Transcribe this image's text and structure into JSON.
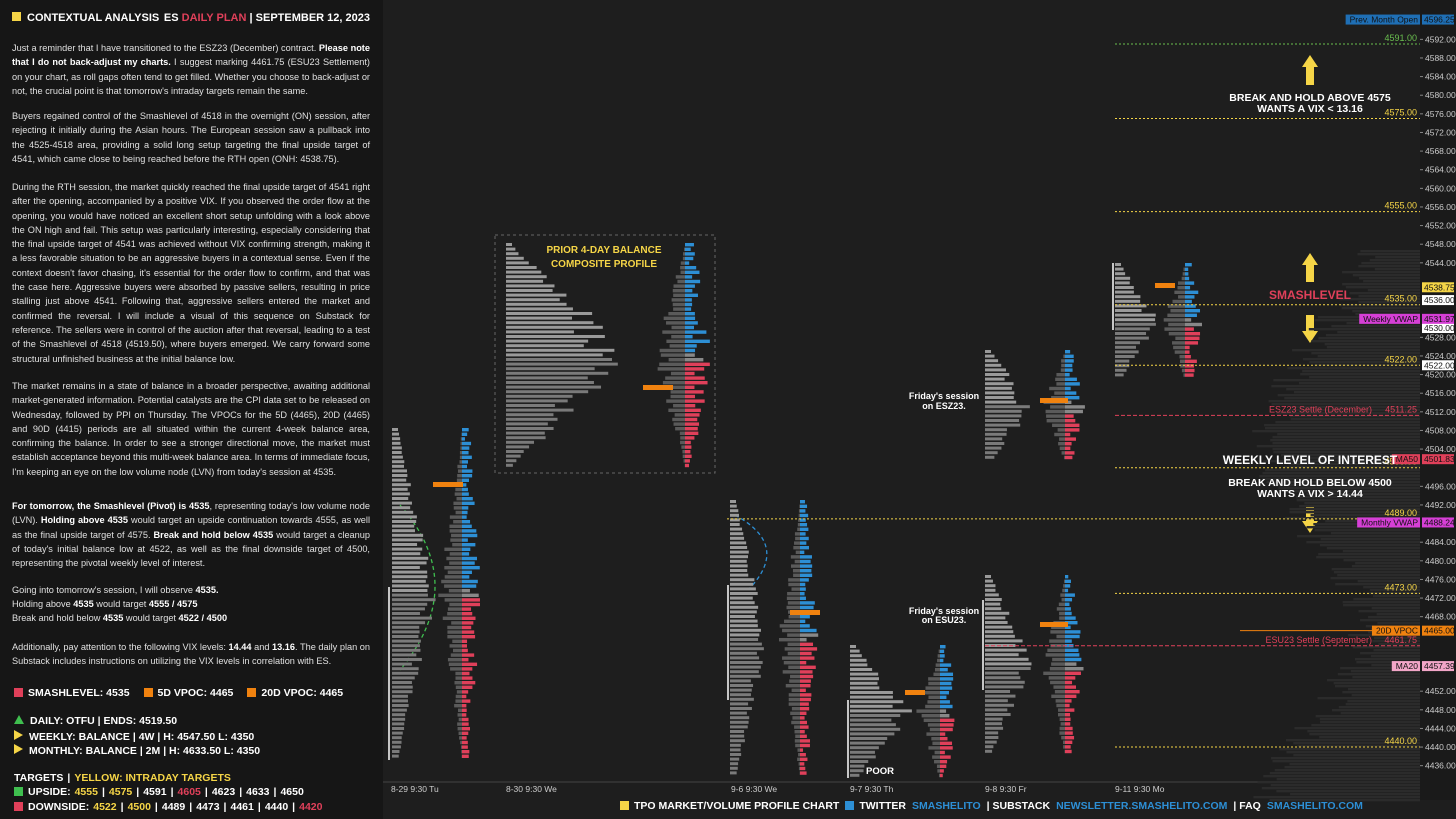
{
  "header": {
    "title": "CONTEXTUAL ANALYSIS",
    "symbol": "ES",
    "plan": "DAILY PLAN",
    "date": "SEPTEMBER 12, 2023"
  },
  "paragraphs": [
    [
      "Just a reminder that I have transitioned to the ESZ23 (December) contract. ",
      {
        "t": "Please note that I do not back-adjust my charts.",
        "b": true
      },
      " I suggest marking 4461.75 (ESU23 Settlement) on your chart, as roll gaps often tend to get filled. Whether you choose to back-adjust or not, the crucial point is that tomorrow's intraday targets remain the same."
    ],
    [
      "Buyers regained control of the Smashlevel of 4518 in the overnight (ON) session, after rejecting it initially during the Asian hours. The European session saw a pullback into the 4525-4518 area, providing a solid long setup targeting the final upside target of 4541, which came close to being reached before the RTH open (ONH: 4538.75)."
    ],
    [
      "During the RTH session, the market quickly reached the final upside target of 4541 right after the opening, accompanied by a positive VIX. If you observed the order flow at the opening, you would have noticed an excellent short setup unfolding with a look above the ON high and fail. This setup was particularly interesting, especially considering that the final upside target of 4541 was achieved without VIX confirming strength, making it a less favorable situation to be an aggressive buyers in a contextual sense. Even if the context doesn't favor chasing, it's essential for the order flow to confirm, and that was the case here. Aggressive buyers were absorbed by passive sellers, resulting in price stalling just above 4541. Following that, aggressive sellers entered the market and confirmed the reversal. I will include a visual of this sequence on Substack for reference. The sellers were in control of the auction after that reversal, leading to a test of the Smashlevel of 4518 (4519.50), where buyers emerged. We carry forward some structural unfinished business at the initial balance low."
    ],
    [
      "The market remains in a state of balance in a broader perspective, awaiting additional market-generated information. Potential catalysts are the CPI data set to be released on Wednesday, followed by PPI on Thursday. The VPOCs for the 5D (4465), 20D (4465) and 90D (4415) periods are all situated within the current 4-week balance area, confirming the balance. In order to see a stronger directional move, the market must establish acceptance beyond this multi-week balance area. In terms of immediate focus, I'm keeping an eye on the low volume node (LVN) from today's session at 4535."
    ],
    [
      {
        "t": "For tomorrow, the Smashlevel (Pivot) is 4535",
        "b": true
      },
      ", representing today's low volume node (LVN). ",
      {
        "t": "Holding above 4535",
        "b": true
      },
      " would target an upside continuation towards 4555, as well as the final upside target of 4575. ",
      {
        "t": "Break and hold below 4535",
        "b": true
      },
      " would target a cleanup of today's initial balance low at 4522, as well as the final downside target of 4500, representing the pivotal weekly level of interest."
    ],
    [
      "Going into tomorrow's session, I will observe ",
      {
        "t": "4535.",
        "b": true
      }
    ],
    [
      "Holding above ",
      {
        "t": "4535",
        "b": true
      },
      " would target ",
      {
        "t": "4555 / 4575",
        "b": true
      }
    ],
    [
      "Break and hold below ",
      {
        "t": "4535",
        "b": true
      },
      " would target ",
      {
        "t": "4522 / 4500",
        "b": true
      }
    ],
    [
      "Additionally, pay attention to the following VIX levels: ",
      {
        "t": "14.44",
        "b": true
      },
      " and ",
      {
        "t": "13.16",
        "b": true
      },
      ". The daily plan on Substack includes instructions on utilizing the VIX levels in correlation with ES."
    ]
  ],
  "levels_summary": [
    {
      "text": "SMASHLEVEL: 4535",
      "color": "#e0405a"
    },
    {
      "text": "5D VPOC: 4465",
      "color": "#f0820f"
    },
    {
      "text": "20D VPOC: 4465",
      "color": "#f0820f"
    }
  ],
  "structure": [
    {
      "text": "DAILY: OTFU | ENDS: 4519.50",
      "color": "#3fbf4f"
    },
    {
      "text": "WEEKLY: BALANCE | 4W | H: 4547.50 L: 4350",
      "color": "#f5d547"
    },
    {
      "text": "MONTHLY: BALANCE | 2M | H: 4633.50 L: 4350",
      "color": "#f5d547"
    }
  ],
  "targets": {
    "title": "TARGETS",
    "legend": "YELLOW: INTRADAY TARGETS",
    "rows": [
      {
        "label": "UPSIDE:",
        "color": "#3fbf4f",
        "items": [
          "4555",
          "4575",
          "4591",
          "4605",
          "4623",
          "4633",
          "4650"
        ],
        "item_colors": [
          "#f5d547",
          "#f5d547",
          "#ffffff",
          "#e0405a",
          "#ffffff",
          "#ffffff",
          "#ffffff"
        ]
      },
      {
        "label": "DOWNSIDE:",
        "color": "#e0405a",
        "items": [
          "4522",
          "4500",
          "4489",
          "4473",
          "4461",
          "4440",
          "4420"
        ],
        "item_colors": [
          "#f5d547",
          "#f5d547",
          "#ffffff",
          "#ffffff",
          "#ffffff",
          "#ffffff",
          "#e0405a"
        ]
      }
    ]
  },
  "chart": {
    "axis_ticks": [
      {
        "value": 4592,
        "label": "4592.00"
      },
      {
        "value": 4588,
        "label": "4588.00"
      },
      {
        "value": 4584,
        "label": "4584.00"
      },
      {
        "value": 4580,
        "label": "4580.00"
      },
      {
        "value": 4576,
        "label": "4576.00"
      },
      {
        "value": 4572,
        "label": "4572.00"
      },
      {
        "value": 4568,
        "label": "4568.00"
      },
      {
        "value": 4564,
        "label": "4564.00"
      },
      {
        "value": 4560,
        "label": "4560.00"
      },
      {
        "value": 4556,
        "label": "4556.00"
      },
      {
        "value": 4552,
        "label": "4552.00"
      },
      {
        "value": 4548,
        "label": "4548.00"
      },
      {
        "value": 4544,
        "label": "4544.00"
      },
      {
        "value": 4528,
        "label": "4528.00"
      },
      {
        "value": 4524,
        "label": "4524.00"
      },
      {
        "value": 4520,
        "label": "4520.00"
      },
      {
        "value": 4516,
        "label": "4516.00"
      },
      {
        "value": 4512,
        "label": "4512.00"
      },
      {
        "value": 4508,
        "label": "4508.00"
      },
      {
        "value": 4504,
        "label": "4504.00"
      },
      {
        "value": 4496,
        "label": "4496.00"
      },
      {
        "value": 4492,
        "label": "4492.00"
      },
      {
        "value": 4484,
        "label": "4484.00"
      },
      {
        "value": 4480,
        "label": "4480.00"
      },
      {
        "value": 4476,
        "label": "4476.00"
      },
      {
        "value": 4472,
        "label": "4472.00"
      },
      {
        "value": 4468,
        "label": "4468.00"
      },
      {
        "value": 4452,
        "label": "4452.00"
      },
      {
        "value": 4448,
        "label": "4448.00"
      },
      {
        "value": 4444,
        "label": "4444.00"
      },
      {
        "value": 4440,
        "label": "4440.00"
      },
      {
        "value": 4436,
        "label": "4436.00"
      }
    ],
    "price_tags": [
      {
        "name": "Prev. Month Open",
        "value": 4596.25,
        "label": "4596.25",
        "color": "#1f6fb5"
      },
      {
        "name": "Weekly VWAP",
        "value": 4531.97,
        "label": "4531.97",
        "color": "#d63fd6"
      },
      {
        "name": "MA50",
        "value": 4501.83,
        "label": "4501.83",
        "color": "#e0405a"
      },
      {
        "name": "Monthly VWAP",
        "value": 4488.24,
        "label": "4488.24",
        "color": "#d63fd6"
      },
      {
        "name": "20D VPOC",
        "value": 4465,
        "label": "4465.00",
        "color": "#f0820f"
      },
      {
        "name": "MA20",
        "value": 4457.39,
        "label": "4457.39",
        "color": "#f2a6c8"
      }
    ],
    "price_boxes": [
      {
        "value": 4538.75,
        "label": "4538.75",
        "color": "#f5d547"
      },
      {
        "value": 4536,
        "label": "4536.00",
        "color": "#ffffff"
      },
      {
        "value": 4530,
        "label": "4530.00",
        "color": "#ffffff"
      },
      {
        "value": 4522,
        "label": "4522.00",
        "color": "#ffffff"
      }
    ],
    "levels": [
      {
        "value": 4591,
        "label": "4591.00",
        "color": "#6abf4f"
      },
      {
        "value": 4575,
        "label": "4575.00",
        "color": "#f5d547"
      },
      {
        "value": 4555,
        "label": "4555.00",
        "color": "#f5d547"
      },
      {
        "value": 4535,
        "label": "4535.00",
        "color": "#f5d547"
      },
      {
        "value": 4522,
        "label": "4522.00",
        "color": "#f5d547"
      },
      {
        "value": 4511.25,
        "name": "ESZ23 Settle (December)",
        "label": "4511.25",
        "color": "#e0405a"
      },
      {
        "value": 4500,
        "label": "4500.00",
        "color": "#f5d547"
      },
      {
        "value": 4489,
        "label": "4489.00",
        "color": "#f5d547"
      },
      {
        "value": 4473,
        "label": "4473.00",
        "color": "#f5d547"
      },
      {
        "value": 4461.75,
        "name": "ESU23 Settle (September)",
        "label": "4461.75",
        "color": "#e0405a"
      },
      {
        "value": 4440,
        "label": "4440.00",
        "color": "#f5d547"
      }
    ],
    "annotations": [
      "BREAK AND HOLD ABOVE 4575",
      "WANTS A VIX < 13.16",
      "SMASHLEVEL",
      "WEEKLY LEVEL OF INTEREST",
      "BREAK AND HOLD BELOW 4500",
      "WANTS A VIX > 14.44",
      "PRIOR 4-DAY BALANCE",
      "COMPOSITE PROFILE",
      "Friday's session",
      "on ESZ23.",
      "Friday's session",
      "on ESU23.",
      "POOR"
    ],
    "sessions": [
      "8-29  9:30 Tu",
      "8-30  9:30 We",
      "9-6  9:30 We",
      "9-7  9:30 Th",
      "9-8  9:30 Fr",
      "9-11  9:30 Mo"
    ]
  },
  "footer": [
    {
      "text": "TPO MARKET/VOLUME PROFILE CHART",
      "color": "#ffffff",
      "square": "#f5d547"
    },
    {
      "text": "TWITTER",
      "color": "#ffffff",
      "square": "#2d8fd5"
    },
    {
      "text": "SMASHELITO",
      "color": "#2d8fd5"
    },
    {
      "text": "| SUBSTACK",
      "color": "#ffffff"
    },
    {
      "text": "NEWSLETTER.SMASHELITO.COM",
      "color": "#2d8fd5"
    },
    {
      "text": "| FAQ",
      "color": "#ffffff"
    },
    {
      "text": "SMASHELITO.COM",
      "color": "#2d8fd5"
    }
  ]
}
